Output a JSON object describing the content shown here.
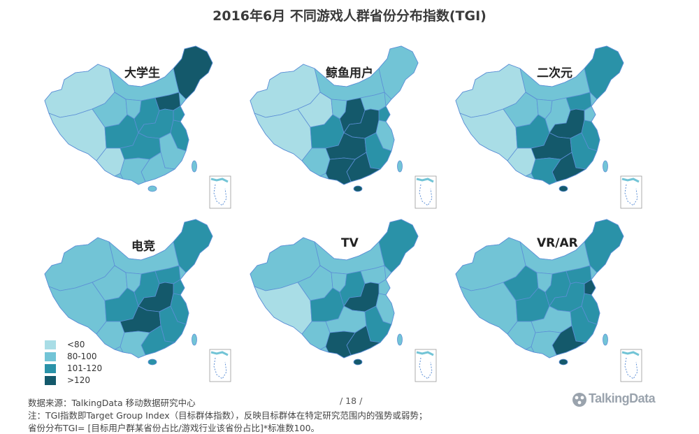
{
  "title": "2016年6月 不同游戏人群省份分布指数(TGI)",
  "colors": {
    "lt80": "#a9dde6",
    "c80_100": "#72c4d6",
    "c101_120": "#2a92a8",
    "gt120": "#14596b",
    "border": "#5c8fd6"
  },
  "maps": [
    {
      "label": "大学生"
    },
    {
      "label": "鲸鱼用户"
    },
    {
      "label": "二次元"
    },
    {
      "label": "电竞"
    },
    {
      "label": "TV"
    },
    {
      "label": "VR/AR"
    }
  ],
  "legend": [
    {
      "label": "<80"
    },
    {
      "label": "80-100"
    },
    {
      "label": "101-120"
    },
    {
      "label": ">120"
    }
  ],
  "footer": {
    "source": "数据来源：TalkingData  移动数据研究中心",
    "note1": "注：TGI指数即Target  Group Index（目标群体指数），反映目标群体在特定研究范围内的强势或弱势；",
    "note2": "省份分布TGI= [目标用户群某省份占比/游戏行业该省份占比]*标准数100。",
    "page": "/ 18 /",
    "logo": "TalkingData"
  }
}
